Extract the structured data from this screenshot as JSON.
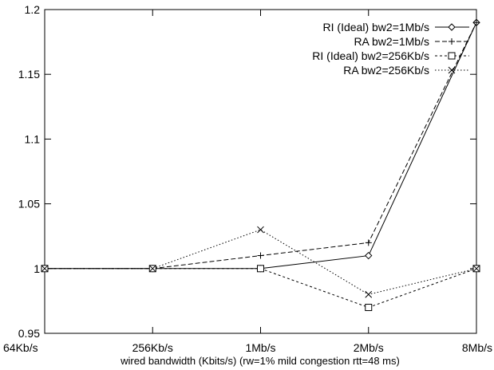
{
  "chart_data": {
    "type": "line",
    "title": "",
    "xlabel": "wired bandwidth (Kbits/s) (rw=1%  mild congestion  rtt=48 ms)",
    "ylabel": "",
    "categories": [
      "64Kb/s",
      "256Kb/s",
      "1Mb/s",
      "2Mb/s",
      "8Mb/s"
    ],
    "ylim": [
      0.95,
      1.2
    ],
    "yticks": [
      0.95,
      1,
      1.05,
      1.1,
      1.15,
      1.2
    ],
    "ytick_labels": [
      "0.95",
      "1",
      "1.05",
      "1.1",
      "1.15",
      "1.2"
    ],
    "grid": false,
    "legend_position": "top-right",
    "series": [
      {
        "name": "RI (Ideal) bw2=1Mb/s",
        "values": [
          1,
          1,
          1,
          1.01,
          1.19
        ],
        "marker": "diamond",
        "dash": "solid"
      },
      {
        "name": "RA bw2=1Mb/s",
        "values": [
          1,
          1,
          1.01,
          1.02,
          1.19
        ],
        "marker": "plus",
        "dash": "dashed"
      },
      {
        "name": "RI (Ideal) bw2=256Kb/s",
        "values": [
          1,
          1,
          1,
          0.97,
          1
        ],
        "marker": "square",
        "dash": "short-dashed"
      },
      {
        "name": "RA bw2=256Kb/s",
        "values": [
          1,
          1,
          1.03,
          0.98,
          1
        ],
        "marker": "cross",
        "dash": "dotted"
      }
    ]
  }
}
